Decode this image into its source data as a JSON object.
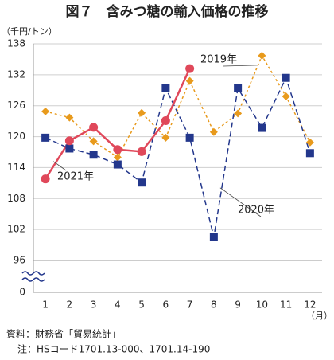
{
  "chart_data": {
    "type": "line",
    "title": "図７　含みつ糖の輸入価格の推移",
    "y_unit": "（千円/トン）",
    "x_unit": "（月）",
    "categories": [
      "1",
      "2",
      "3",
      "4",
      "5",
      "6",
      "7",
      "8",
      "9",
      "10",
      "11",
      "12"
    ],
    "series": [
      {
        "name": "2019年",
        "color": "#e89a1c",
        "marker": "diamond",
        "dash": "3 3",
        "values": [
          124.9,
          123.7,
          119.1,
          116.0,
          124.6,
          119.8,
          130.8,
          120.9,
          124.5,
          135.7,
          127.8,
          118.9
        ]
      },
      {
        "name": "2020年",
        "color": "#23378c",
        "marker": "square",
        "dash": "7 4",
        "values": [
          119.8,
          117.7,
          116.5,
          114.6,
          111.1,
          129.4,
          119.8,
          100.5,
          129.4,
          121.7,
          131.4,
          116.8
        ]
      },
      {
        "name": "2021年",
        "color": "#e0485a",
        "marker": "circle",
        "dash": "",
        "values": [
          111.8,
          119.2,
          121.8,
          117.5,
          117.1,
          123.1,
          133.2,
          null,
          null,
          null,
          null,
          null
        ]
      }
    ],
    "ylim": [
      96,
      138
    ],
    "yticks": [
      0,
      96,
      102,
      108,
      114,
      120,
      126,
      132,
      138
    ],
    "axis_break": true,
    "grid": true,
    "source": "資料：財務省「貿易統計」",
    "note": "注：HSコード1701.13-000、1701.14-190"
  }
}
